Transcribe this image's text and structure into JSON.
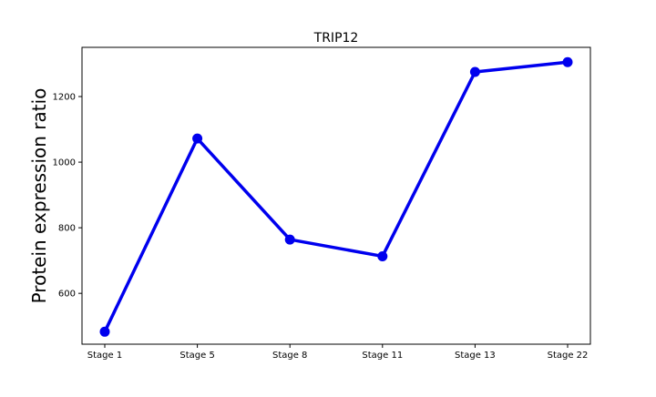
{
  "chart_data": {
    "type": "line",
    "title": "TRIP12",
    "xlabel": "",
    "ylabel": "Protein expression ratio",
    "categories": [
      "Stage 1",
      "Stage 5",
      "Stage 8",
      "Stage 11",
      "Stage 13",
      "Stage 22"
    ],
    "series": [
      {
        "values": [
          483,
          1072,
          764,
          713,
          1275,
          1305
        ],
        "color": "#0000ee"
      }
    ],
    "ylim": [
      445,
      1350
    ],
    "yticks": [
      600,
      800,
      1000,
      1200
    ],
    "grid": false,
    "legend": "none"
  }
}
